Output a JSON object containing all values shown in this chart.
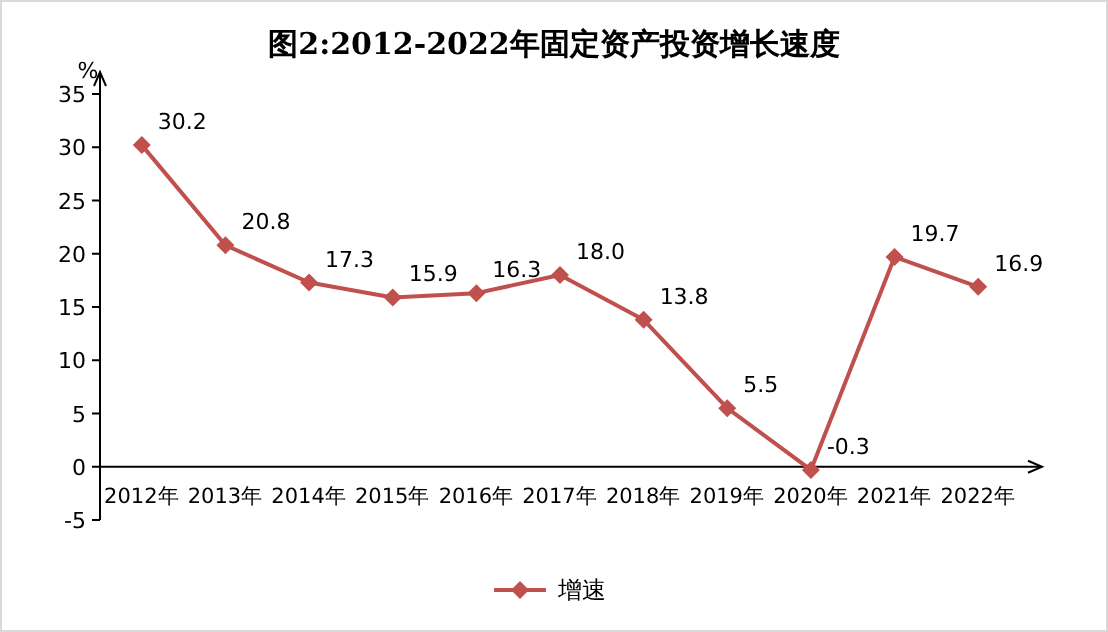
{
  "chart_data": {
    "type": "line",
    "title": "图2:2012-2022年固定资产投资增长速度",
    "ylabel": "%",
    "categories": [
      "2012年",
      "2013年",
      "2014年",
      "2015年",
      "2016年",
      "2017年",
      "2018年",
      "2019年",
      "2020年",
      "2021年",
      "2022年"
    ],
    "series": [
      {
        "name": "增速",
        "color": "#c0504d",
        "values": [
          30.2,
          20.8,
          17.3,
          15.9,
          16.3,
          18.0,
          13.8,
          5.5,
          -0.3,
          19.7,
          16.9
        ],
        "value_labels": [
          "30.2",
          "20.8",
          "17.3",
          "15.9",
          "16.3",
          "18.0",
          "13.8",
          "5.5",
          "-0.3",
          "19.7",
          "16.9"
        ]
      }
    ],
    "ylim": [
      -5,
      35
    ],
    "yticks": [
      -5,
      0,
      5,
      10,
      15,
      20,
      25,
      30,
      35
    ],
    "grid": false,
    "legend": "bottom",
    "marker": "diamond",
    "line_style": "solid"
  }
}
